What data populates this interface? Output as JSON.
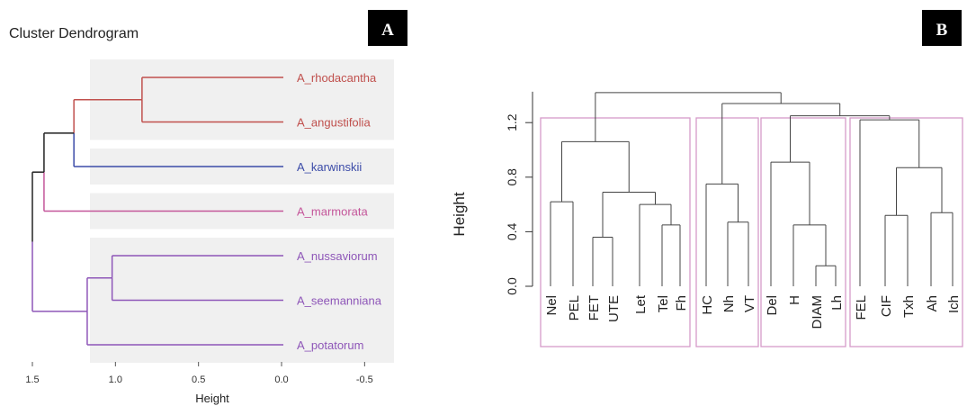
{
  "chart_data": [
    {
      "panel": "A",
      "type": "dendrogram",
      "orientation": "horizontal",
      "title": "Cluster Dendrogram",
      "xlabel": "Height",
      "xlim": [
        1.5,
        -0.5
      ],
      "xticks": [
        "1.5",
        "1.0",
        "0.5",
        "0.0",
        "-0.5"
      ],
      "xtick_values": [
        1.5,
        1.0,
        0.5,
        0.0,
        -0.5
      ],
      "leaves": [
        {
          "label": "A_rhodacantha",
          "color": "#c0504d"
        },
        {
          "label": "A_angustifolia",
          "color": "#c0504d"
        },
        {
          "label": "A_karwinskii",
          "color": "#3b4ba8"
        },
        {
          "label": "A_marmorata",
          "color": "#c4569a"
        },
        {
          "label": "A_nussaviorum",
          "color": "#8e56b8"
        },
        {
          "label": "A_seemanniana",
          "color": "#8e56b8"
        },
        {
          "label": "A_potatorum",
          "color": "#8e56b8"
        }
      ],
      "merges": [
        {
          "a": "L0",
          "b": "L1",
          "height": 0.84,
          "color": "#c0504d"
        },
        {
          "a": "L4",
          "b": "L5",
          "height": 1.02,
          "color": "#8e56b8"
        },
        {
          "a": "M1",
          "b": "L6",
          "height": 1.17,
          "color": "#8e56b8"
        },
        {
          "a": "M0",
          "b": "L2",
          "height": 1.25,
          "color": "#c0504d"
        },
        {
          "a": "M3",
          "b": "L3",
          "height": 1.43,
          "color": "#222222"
        },
        {
          "a": "M4",
          "b": "M2",
          "height": 1.5,
          "color": "#222222"
        }
      ],
      "second_colors": {
        "M3": "#3b4ba8",
        "M4": "#c4569a",
        "M5": "#8e56b8"
      }
    },
    {
      "panel": "B",
      "type": "dendrogram",
      "orientation": "vertical",
      "ylabel": "Height",
      "ylim": [
        0.0,
        1.4
      ],
      "yticks": [
        "0.0",
        "0.4",
        "0.8",
        "1.2"
      ],
      "ytick_values": [
        0.0,
        0.4,
        0.8,
        1.2
      ],
      "leaves": [
        "Nel",
        "PEL",
        "FET",
        "UTE",
        "Let",
        "Tel",
        "Fh",
        "HC",
        "Nh",
        "VT",
        "Del",
        "H",
        "DIAM",
        "Lh",
        "FEL",
        "CIF",
        "Txh",
        "Ah",
        "Ich"
      ],
      "merges": [
        {
          "a": "L0",
          "b": "L1",
          "height": 0.62
        },
        {
          "a": "L2",
          "b": "L3",
          "height": 0.36
        },
        {
          "a": "L5",
          "b": "L6",
          "height": 0.45
        },
        {
          "a": "L4",
          "b": "M2",
          "height": 0.6
        },
        {
          "a": "M1",
          "b": "M3",
          "height": 0.69
        },
        {
          "a": "M0",
          "b": "M4",
          "height": 1.06
        },
        {
          "a": "L8",
          "b": "L9",
          "height": 0.47
        },
        {
          "a": "L7",
          "b": "M6",
          "height": 0.75
        },
        {
          "a": "L12",
          "b": "L13",
          "height": 0.15
        },
        {
          "a": "L11",
          "b": "M8",
          "height": 0.45
        },
        {
          "a": "L10",
          "b": "M9",
          "height": 0.91
        },
        {
          "a": "L15",
          "b": "L16",
          "height": 0.52
        },
        {
          "a": "L17",
          "b": "L18",
          "height": 0.54
        },
        {
          "a": "M11",
          "b": "M12",
          "height": 0.87
        },
        {
          "a": "L14",
          "b": "M13",
          "height": 1.22
        },
        {
          "a": "M10",
          "b": "M14",
          "height": 1.25
        },
        {
          "a": "M7",
          "b": "M15",
          "height": 1.34
        },
        {
          "a": "M5",
          "b": "M16",
          "height": 1.42
        }
      ],
      "cluster_boxes": [
        {
          "from_leaf": 0,
          "to_leaf": 6
        },
        {
          "from_leaf": 7,
          "to_leaf": 9
        },
        {
          "from_leaf": 10,
          "to_leaf": 13
        },
        {
          "from_leaf": 14,
          "to_leaf": 18
        }
      ],
      "box_color": "#d69ac9"
    }
  ]
}
